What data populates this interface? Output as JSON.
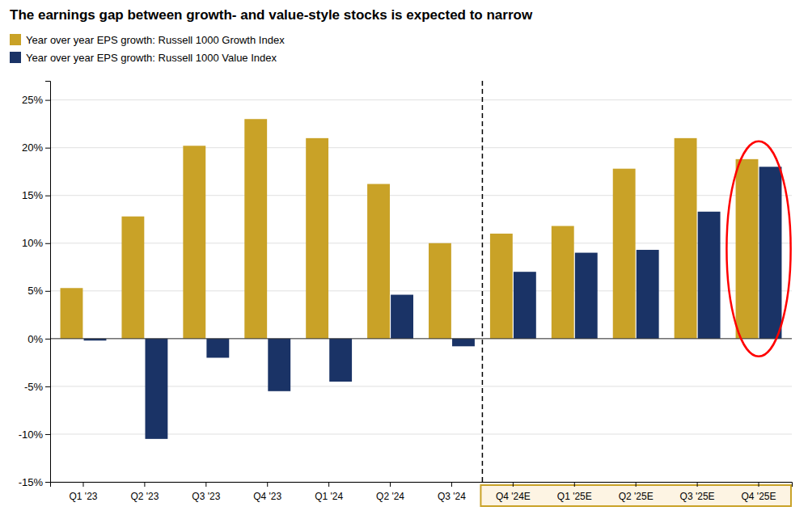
{
  "chart_data": {
    "type": "bar",
    "title": "The earnings gap between growth- and value-style stocks is expected to narrow",
    "categories": [
      "Q1 '23",
      "Q2 '23",
      "Q3 '23",
      "Q4 '23",
      "Q1 '24",
      "Q2 '24",
      "Q3 '24",
      "Q4 '24E",
      "Q1 '25E",
      "Q2 '25E",
      "Q3 '25E",
      "Q4 '25E"
    ],
    "series": [
      {
        "name": "Year over year EPS growth: Russell 1000 Growth Index",
        "color": "#C9A227",
        "values": [
          5.3,
          12.8,
          20.2,
          23.0,
          21.0,
          16.2,
          10.0,
          11.0,
          11.8,
          17.8,
          21.0,
          18.8
        ]
      },
      {
        "name": "Year over year EPS growth: Russell 1000 Value Index",
        "color": "#1A3366",
        "values": [
          -0.2,
          -10.5,
          -2.0,
          -5.5,
          -4.5,
          4.6,
          -0.8,
          7.0,
          9.0,
          9.3,
          13.3,
          18.0
        ]
      }
    ],
    "ylim": [
      -15,
      27
    ],
    "yticks": [
      {
        "value": -15,
        "label": "-15%"
      },
      {
        "value": -10,
        "label": "-10%"
      },
      {
        "value": -5,
        "label": "-5%"
      },
      {
        "value": 0,
        "label": "0%"
      },
      {
        "value": 5,
        "label": "5%"
      },
      {
        "value": 10,
        "label": "10%"
      },
      {
        "value": 15,
        "label": "15%"
      },
      {
        "value": 20,
        "label": "20%"
      },
      {
        "value": 25,
        "label": "25%"
      }
    ],
    "grid": true,
    "legend": "upper left"
  }
}
